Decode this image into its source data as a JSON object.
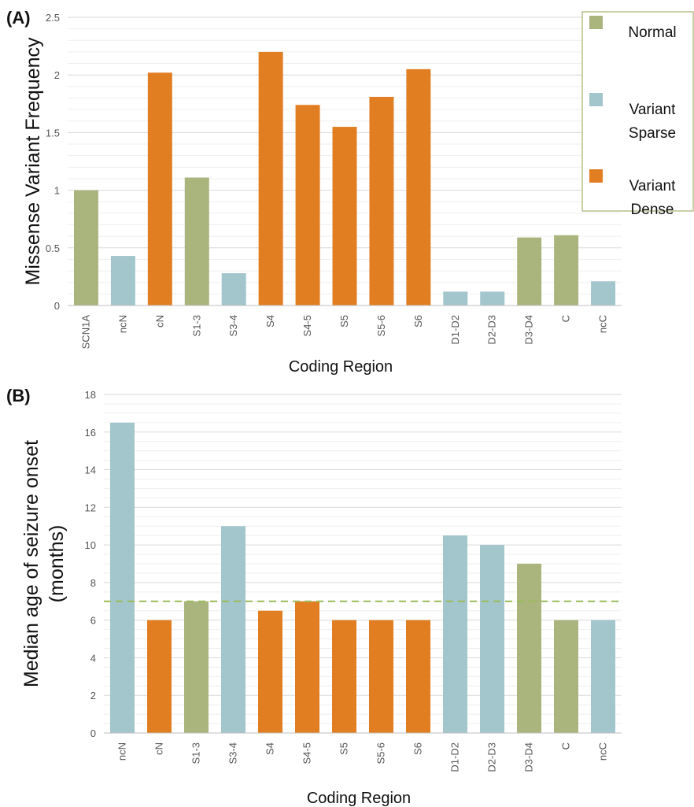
{
  "colors": {
    "Normal": "#aab57d",
    "Variant Sparse": "#a2c6cc",
    "Variant Dense": "#e27e22",
    "grid_major": "#d9d9d9",
    "grid_minor": "#efefef",
    "reference_line": "#9bbb59"
  },
  "legend": {
    "placement": "top-right",
    "items": [
      {
        "label_lines": [
          "Normal"
        ],
        "color_key": "Normal"
      },
      {
        "label_lines": [
          "Variant",
          "Sparse"
        ],
        "color_key": "Variant Sparse"
      },
      {
        "label_lines": [
          "Variant",
          "Dense"
        ],
        "color_key": "Variant Dense"
      }
    ]
  },
  "chart_data": [
    {
      "type": "bar",
      "panel_label": "(A)",
      "xlabel": "Coding Region",
      "ylabel_lines": [
        "Missense Variant Frequency"
      ],
      "ylim": [
        0,
        2.5
      ],
      "yticks": [
        "0",
        "0.5",
        "1",
        "1.5",
        "2",
        "2.5"
      ],
      "grid": true,
      "categories": [
        "SCN1A",
        "ncN",
        "cN",
        "S1-3",
        "S3-4",
        "S4",
        "S4-5",
        "S5",
        "S5-6",
        "S6",
        "D1-D2",
        "D2-D3",
        "D3-D4",
        "C",
        "ncC"
      ],
      "values": [
        1.0,
        0.43,
        2.02,
        1.11,
        0.28,
        2.2,
        1.74,
        1.55,
        1.81,
        2.05,
        0.12,
        0.12,
        0.59,
        0.61,
        0.21
      ],
      "groups": [
        "Normal",
        "Variant Sparse",
        "Variant Dense",
        "Normal",
        "Variant Sparse",
        "Variant Dense",
        "Variant Dense",
        "Variant Dense",
        "Variant Dense",
        "Variant Dense",
        "Variant Sparse",
        "Variant Sparse",
        "Normal",
        "Normal",
        "Variant Sparse"
      ]
    },
    {
      "type": "bar",
      "panel_label": "(B)",
      "xlabel": "Coding Region",
      "ylabel_lines": [
        "Median age of seizure onset",
        "(months)"
      ],
      "ylim": [
        0,
        18
      ],
      "yticks": [
        "0",
        "2",
        "4",
        "6",
        "8",
        "10",
        "12",
        "14",
        "16",
        "18"
      ],
      "grid": true,
      "reference_line": 7,
      "categories": [
        "ncN",
        "cN",
        "S1-3",
        "S3-4",
        "S4",
        "S4-5",
        "S5",
        "S5-6",
        "S6",
        "D1-D2",
        "D2-D3",
        "D3-D4",
        "C",
        "ncC"
      ],
      "values": [
        16.5,
        6,
        7,
        11,
        6.5,
        7,
        6,
        6,
        6,
        10.5,
        10,
        9,
        6,
        6
      ],
      "groups": [
        "Variant Sparse",
        "Variant Dense",
        "Normal",
        "Variant Sparse",
        "Variant Dense",
        "Variant Dense",
        "Variant Dense",
        "Variant Dense",
        "Variant Dense",
        "Variant Sparse",
        "Variant Sparse",
        "Normal",
        "Normal",
        "Variant Sparse"
      ]
    }
  ]
}
